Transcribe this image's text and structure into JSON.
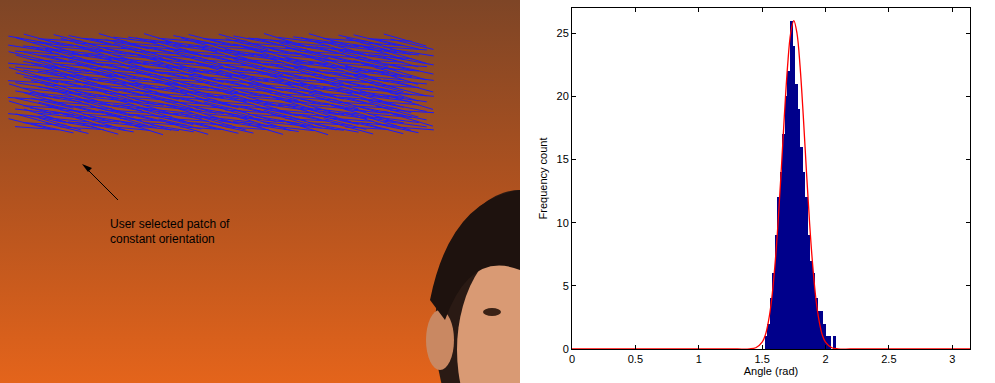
{
  "chart_data": {
    "type": "histogram",
    "x_label": "Angle (rad)",
    "y_label": "Frequency count",
    "bins": [
      1.52,
      1.54,
      1.56,
      1.58,
      1.6,
      1.62,
      1.64,
      1.66,
      1.68,
      1.7,
      1.72,
      1.74,
      1.76,
      1.78,
      1.8,
      1.82,
      1.84,
      1.86,
      1.88,
      1.9,
      1.92,
      1.94,
      1.96,
      1.98,
      2.0,
      2.02,
      2.04,
      2.06,
      2.08
    ],
    "values": [
      1,
      2,
      4,
      6,
      9,
      12,
      14,
      17,
      20,
      22,
      26,
      24,
      21,
      19,
      16,
      14,
      12,
      9,
      7,
      6,
      4,
      3,
      3,
      2,
      1,
      1,
      0,
      1
    ],
    "color": "#00008b",
    "fit": {
      "type": "line",
      "color": "#ff0000",
      "x": [
        0,
        0.5,
        1.0,
        1.3,
        1.4,
        1.45,
        1.5,
        1.525,
        1.55,
        1.575,
        1.6,
        1.625,
        1.65,
        1.675,
        1.7,
        1.725,
        1.75,
        1.775,
        1.8,
        1.825,
        1.85,
        1.875,
        1.9,
        1.925,
        1.95,
        1.975,
        2.0,
        2.05,
        2.1,
        2.2,
        2.5,
        3.14
      ],
      "values": [
        0,
        0,
        0,
        0,
        0.01,
        0.1,
        0.55,
        1.1,
        2.2,
        3.9,
        6.5,
        9.9,
        14.0,
        18.4,
        22.3,
        25.0,
        26.0,
        25.0,
        22.3,
        18.4,
        14.0,
        9.9,
        6.5,
        3.9,
        2.2,
        1.1,
        0.55,
        0.1,
        0.01,
        0,
        0,
        0
      ]
    },
    "xlim": [
      0,
      3.14
    ],
    "xticks": [
      0,
      0.5,
      1,
      1.5,
      2,
      2.5,
      3
    ],
    "ylim": [
      0,
      27
    ],
    "yticks": [
      0,
      5,
      10,
      15,
      20,
      25
    ],
    "grid": false
  },
  "image": {
    "annotation": [
      "User selected patch of",
      "constant orientation"
    ]
  }
}
